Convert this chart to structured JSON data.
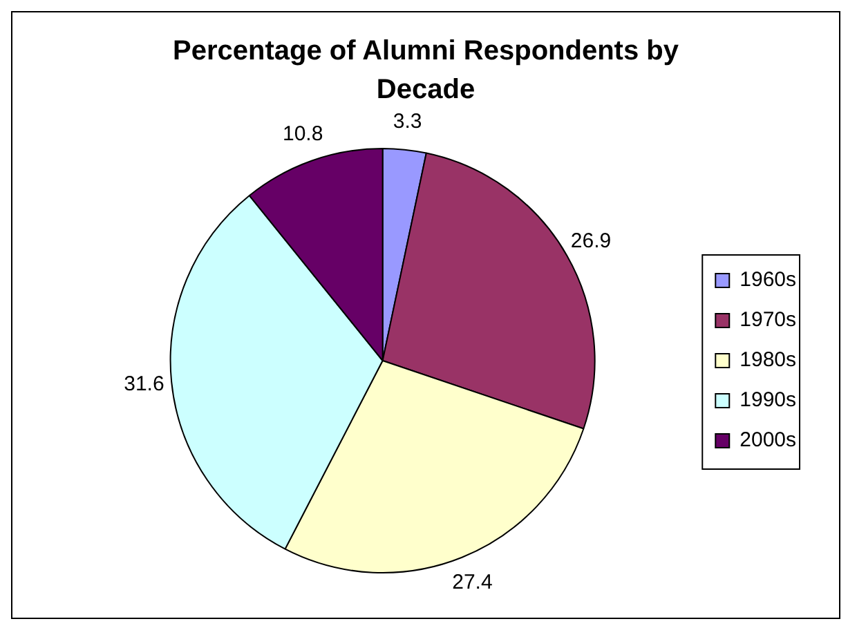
{
  "chart_data": {
    "type": "pie",
    "title": "Percentage of Alumni Respondents by Decade",
    "categories": [
      "1960s",
      "1970s",
      "1980s",
      "1990s",
      "2000s"
    ],
    "values": [
      3.3,
      26.9,
      27.4,
      31.6,
      10.8
    ],
    "colors": [
      "#9999ff",
      "#993366",
      "#ffffcc",
      "#ccffff",
      "#660066"
    ],
    "data_labels": true,
    "legend": "right"
  }
}
